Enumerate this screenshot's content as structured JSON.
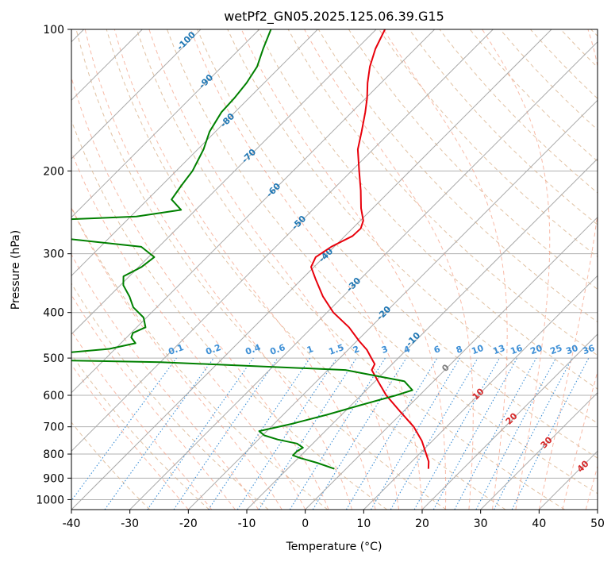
{
  "chart_data": {
    "type": "line",
    "title": "wetPf2_GN05.2025.125.06.39.G15",
    "xlabel": "Temperature (°C)",
    "ylabel": "Pressure (hPa)",
    "xlim": [
      -40,
      50
    ],
    "ylim": [
      1050,
      100
    ],
    "y_scale": "log",
    "grid": true,
    "x_ticks": [
      -40,
      -30,
      -20,
      -10,
      0,
      10,
      20,
      30,
      40,
      50
    ],
    "y_ticks": [
      100,
      200,
      300,
      400,
      500,
      600,
      700,
      800,
      900,
      1000
    ],
    "isotherm_labels": [
      -100,
      -90,
      -80,
      -70,
      -60,
      -50,
      -40,
      -30,
      -20,
      -10
    ],
    "isotherm_zero_label": 0,
    "moist_adiabat_labels": [
      10,
      20,
      30,
      40
    ],
    "mixing_ratio_labels": [
      "0.1",
      "0.2",
      "0.4",
      "0.6",
      "1",
      "1.5",
      "2",
      "3",
      "4",
      "6",
      "8",
      "10",
      "13",
      "16",
      "20",
      "25",
      "30",
      "36"
    ],
    "series": [
      {
        "name": "",
        "color": "#e8000b",
        "points": [
          {
            "p": 100,
            "t": -68.5
          },
          {
            "p": 110,
            "t": -66.8
          },
          {
            "p": 120,
            "t": -64.7
          },
          {
            "p": 130,
            "t": -62.3
          },
          {
            "p": 140,
            "t": -59.8
          },
          {
            "p": 150,
            "t": -57.7
          },
          {
            "p": 165,
            "t": -55.0
          },
          {
            "p": 180,
            "t": -52.6
          },
          {
            "p": 200,
            "t": -48.7
          },
          {
            "p": 220,
            "t": -45.1
          },
          {
            "p": 240,
            "t": -42.0
          },
          {
            "p": 255,
            "t": -39.5
          },
          {
            "p": 265,
            "t": -38.6
          },
          {
            "p": 275,
            "t": -38.7
          },
          {
            "p": 290,
            "t": -40.5
          },
          {
            "p": 305,
            "t": -41.4
          },
          {
            "p": 320,
            "t": -40.5
          },
          {
            "p": 340,
            "t": -37.6
          },
          {
            "p": 370,
            "t": -33.4
          },
          {
            "p": 400,
            "t": -28.9
          },
          {
            "p": 430,
            "t": -23.7
          },
          {
            "p": 460,
            "t": -19.6
          },
          {
            "p": 480,
            "t": -16.8
          },
          {
            "p": 500,
            "t": -14.6
          },
          {
            "p": 515,
            "t": -13.0
          },
          {
            "p": 530,
            "t": -12.5
          },
          {
            "p": 560,
            "t": -9.5
          },
          {
            "p": 600,
            "t": -5.7
          },
          {
            "p": 650,
            "t": -0.5
          },
          {
            "p": 700,
            "t": 4.4
          },
          {
            "p": 750,
            "t": 8.2
          },
          {
            "p": 800,
            "t": 11.2
          },
          {
            "p": 830,
            "t": 12.9
          },
          {
            "p": 860,
            "t": 14.1
          }
        ]
      },
      {
        "name": "",
        "color": "#008000",
        "points": [
          {
            "p": 100,
            "t": -88.0
          },
          {
            "p": 110,
            "t": -86.0
          },
          {
            "p": 120,
            "t": -84.0
          },
          {
            "p": 130,
            "t": -83.0
          },
          {
            "p": 140,
            "t": -82.5
          },
          {
            "p": 150,
            "t": -82.3
          },
          {
            "p": 165,
            "t": -81.0
          },
          {
            "p": 180,
            "t": -79.0
          },
          {
            "p": 200,
            "t": -77.2
          },
          {
            "p": 215,
            "t": -76.6
          },
          {
            "p": 230,
            "t": -75.9
          },
          {
            "p": 242,
            "t": -72.5
          },
          {
            "p": 250,
            "t": -79.0
          },
          {
            "p": 256,
            "t": -98.5
          },
          {
            "p": 262,
            "t": -100.5
          },
          {
            "p": 268,
            "t": -99.5
          },
          {
            "p": 273,
            "t": -97.8
          },
          {
            "p": 278,
            "t": -88.0
          },
          {
            "p": 290,
            "t": -73.0
          },
          {
            "p": 305,
            "t": -69.0
          },
          {
            "p": 320,
            "t": -69.5
          },
          {
            "p": 335,
            "t": -71.0
          },
          {
            "p": 350,
            "t": -69.5
          },
          {
            "p": 370,
            "t": -66.5
          },
          {
            "p": 390,
            "t": -64.0
          },
          {
            "p": 410,
            "t": -60.5
          },
          {
            "p": 430,
            "t": -58.5
          },
          {
            "p": 442,
            "t": -59.7
          },
          {
            "p": 452,
            "t": -59.2
          },
          {
            "p": 465,
            "t": -57.5
          },
          {
            "p": 478,
            "t": -61.0
          },
          {
            "p": 490,
            "t": -70.0
          },
          {
            "p": 500,
            "t": -91.0
          },
          {
            "p": 510,
            "t": -50.0
          },
          {
            "p": 530,
            "t": -17.0
          },
          {
            "p": 560,
            "t": -5.0
          },
          {
            "p": 585,
            "t": -2.1
          },
          {
            "p": 600,
            "t": -4.0
          },
          {
            "p": 630,
            "t": -8.5
          },
          {
            "p": 660,
            "t": -12.5
          },
          {
            "p": 690,
            "t": -17.0
          },
          {
            "p": 715,
            "t": -21.3
          },
          {
            "p": 730,
            "t": -19.7
          },
          {
            "p": 745,
            "t": -16.7
          },
          {
            "p": 760,
            "t": -12.7
          },
          {
            "p": 775,
            "t": -11.0
          },
          {
            "p": 790,
            "t": -11.4
          },
          {
            "p": 805,
            "t": -11.4
          },
          {
            "p": 815,
            "t": -9.8
          },
          {
            "p": 835,
            "t": -6.0
          },
          {
            "p": 860,
            "t": -2.0
          }
        ]
      }
    ]
  }
}
